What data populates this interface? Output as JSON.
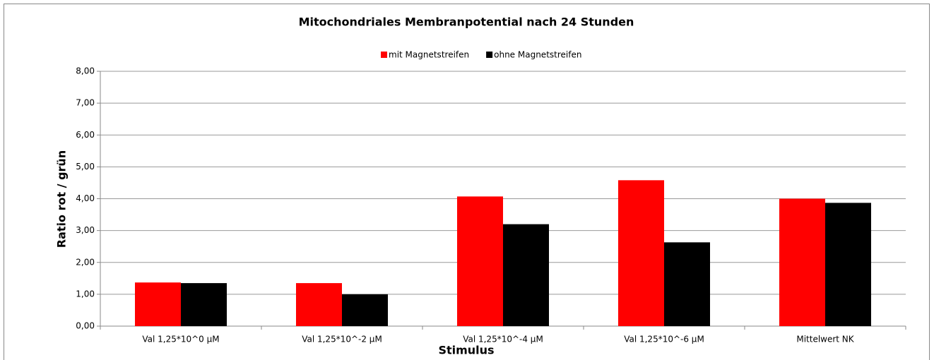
{
  "chart_data": {
    "type": "bar",
    "title": "Mitochondriales Membranpotential nach 24 Stunden",
    "x_label": "Stimulus",
    "y_label": "Ratio rot / grün",
    "categories": [
      "Val 1,25*10^0 µM",
      "Val 1,25*10^-2 µM",
      "Val 1,25*10^-4 µM",
      "Val 1,25*10^-6 µM",
      "Mittelwert NK"
    ],
    "series": [
      {
        "name": "mit Magnetstreifen",
        "color": "#ff0000",
        "values": [
          1.37,
          1.35,
          4.07,
          4.58,
          4.0
        ]
      },
      {
        "name": "ohne Magnetstreifen",
        "color": "#000000",
        "values": [
          1.35,
          1.0,
          3.2,
          2.63,
          3.87
        ]
      }
    ],
    "ylim": [
      0,
      8
    ],
    "yticks": [
      {
        "value": 0,
        "label": "0,00"
      },
      {
        "value": 1,
        "label": "1,00"
      },
      {
        "value": 2,
        "label": "2,00"
      },
      {
        "value": 3,
        "label": "3,00"
      },
      {
        "value": 4,
        "label": "4,00"
      },
      {
        "value": 5,
        "label": "5,00"
      },
      {
        "value": 6,
        "label": "6,00"
      },
      {
        "value": 7,
        "label": "7,00"
      },
      {
        "value": 8,
        "label": "8,00"
      }
    ],
    "grid": true,
    "legend": "top"
  }
}
